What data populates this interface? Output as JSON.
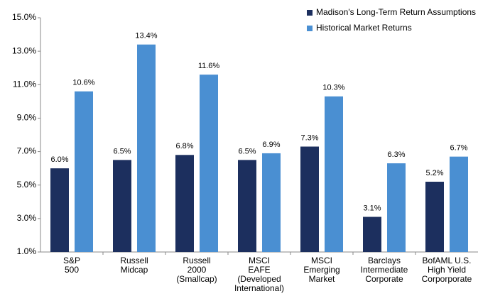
{
  "chart_data": {
    "type": "bar",
    "categories": [
      "S&P\n500",
      "Russell\nMidcap",
      "Russell\n2000\n(Smallcap)",
      "MSCI\nEAFE\n(Developed\nInternational)",
      "MSCI\nEmerging\nMarket",
      "Barclays\nIntermediate\nCorporate",
      "BofAML U.S.\nHigh Yield\nCorporporate"
    ],
    "series": [
      {
        "name": "Madison's Long-Term Return Assumptions",
        "color": "#1c2f5e",
        "values": [
          6.0,
          6.5,
          6.8,
          6.5,
          7.3,
          3.1,
          5.2
        ],
        "value_labels": [
          "6.0%",
          "6.5%",
          "6.8%",
          "6.5%",
          "7.3%",
          "3.1%",
          "5.2%"
        ]
      },
      {
        "name": "Historical Market Returns",
        "color": "#4a8fd2",
        "values": [
          10.6,
          13.4,
          11.6,
          6.9,
          10.3,
          6.3,
          6.7
        ],
        "value_labels": [
          "10.6%",
          "13.4%",
          "11.6%",
          "6.9%",
          "10.3%",
          "6.3%",
          "6.7%"
        ]
      }
    ],
    "ylim": [
      1,
      15
    ],
    "yticks": [
      {
        "value": 1,
        "label": "1.0%"
      },
      {
        "value": 3,
        "label": "3.0%"
      },
      {
        "value": 5,
        "label": "5.0%"
      },
      {
        "value": 7,
        "label": "7.0%"
      },
      {
        "value": 9,
        "label": "9.0%"
      },
      {
        "value": 11,
        "label": "11.0%"
      },
      {
        "value": 13,
        "label": "13.0%"
      },
      {
        "value": 15,
        "label": "15.0%"
      }
    ],
    "legend": "top-right"
  }
}
